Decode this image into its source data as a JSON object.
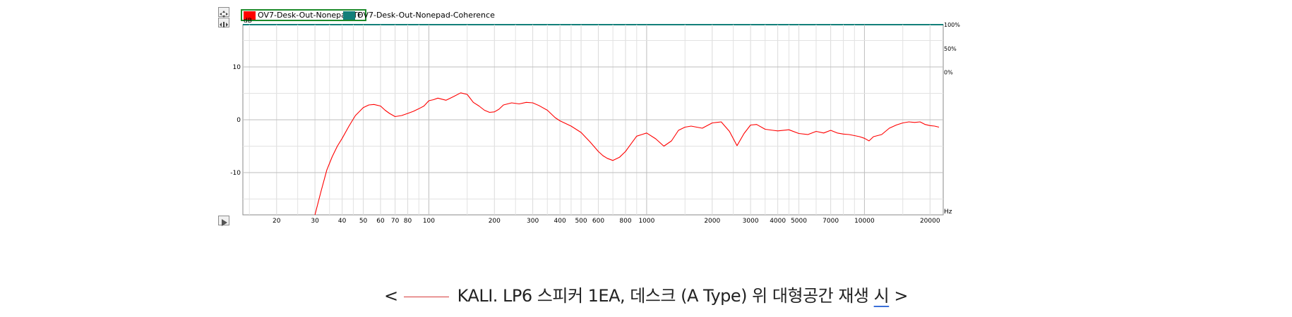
{
  "legend": [
    {
      "name": "OV7-Desk-Out-Nonepad-TF",
      "color": "#ff0000",
      "selected": true
    },
    {
      "name": "OV7-Desk-Out-Nonepad-Coherence",
      "color": "#127f7a",
      "selected": false
    }
  ],
  "caption": {
    "open": "<",
    "text": "KALI. LP6 스피커 1EA, 데스크 (A Type) 위 대형공간 재생",
    "last_word": "시",
    "close": ">"
  },
  "chart_data": {
    "type": "line",
    "xscale": "log",
    "xlim": [
      14,
      23000
    ],
    "ylim": [
      -18,
      18
    ],
    "ylabel": "dB",
    "xunit": "Hz",
    "grid": true,
    "y_ticks": [
      10,
      0,
      -10
    ],
    "y_tick_labels": [
      "10",
      "0",
      "-10"
    ],
    "right_ticks": [
      {
        "label": "100%",
        "y": 18
      },
      {
        "label": "50%",
        "y": 13.5
      },
      {
        "label": "0%",
        "y": 9
      }
    ],
    "x_ticks": [
      20,
      30,
      40,
      50,
      60,
      70,
      80,
      100,
      200,
      300,
      400,
      500,
      600,
      800,
      1000,
      2000,
      3000,
      4000,
      5000,
      7000,
      10000,
      20000
    ],
    "x_tick_labels": [
      "20",
      "30",
      "40",
      "50",
      "60",
      "70",
      "80",
      "100",
      "200",
      "300",
      "400",
      "500",
      "600",
      "800",
      "1000",
      "2000",
      "3000",
      "4000",
      "5000",
      "7000",
      "10000",
      "20000"
    ],
    "x_minor_grid": [
      15,
      25,
      35,
      45,
      90,
      150,
      250,
      350,
      450,
      700,
      900,
      1500,
      2500,
      3500,
      4500,
      6000,
      8000,
      9000,
      15000
    ],
    "series": [
      {
        "name": "OV7-Desk-Out-Nonepad-TF",
        "color": "#ff0000",
        "x": [
          30,
          32,
          34,
          36,
          38,
          40,
          43,
          46,
          50,
          53,
          56,
          60,
          63,
          66,
          70,
          75,
          80,
          85,
          90,
          95,
          100,
          105,
          110,
          120,
          130,
          140,
          150,
          160,
          170,
          180,
          190,
          200,
          210,
          220,
          240,
          260,
          280,
          300,
          320,
          350,
          380,
          400,
          450,
          500,
          550,
          600,
          630,
          660,
          700,
          750,
          800,
          850,
          900,
          950,
          1000,
          1100,
          1200,
          1300,
          1400,
          1500,
          1600,
          1800,
          2000,
          2200,
          2400,
          2600,
          2800,
          3000,
          3200,
          3500,
          3800,
          4000,
          4500,
          5000,
          5500,
          6000,
          6500,
          7000,
          7500,
          8000,
          8500,
          9000,
          9500,
          10000,
          10500,
          11000,
          12000,
          13000,
          14000,
          15000,
          16000,
          17000,
          18000,
          19000,
          20000,
          21000,
          22000
        ],
        "y": [
          -18,
          -13.5,
          -9.5,
          -7,
          -5,
          -3.5,
          -1.2,
          0.8,
          2.3,
          2.8,
          2.9,
          2.6,
          1.8,
          1.2,
          0.6,
          0.8,
          1.2,
          1.6,
          2.1,
          2.6,
          3.6,
          3.8,
          4.1,
          3.7,
          4.4,
          5.1,
          4.8,
          3.3,
          2.6,
          1.8,
          1.4,
          1.5,
          2.0,
          2.8,
          3.2,
          3.0,
          3.3,
          3.2,
          2.7,
          1.8,
          0.4,
          -0.2,
          -1.2,
          -2.4,
          -4.2,
          -6.0,
          -6.8,
          -7.3,
          -7.7,
          -7.1,
          -6.0,
          -4.5,
          -3.1,
          -2.8,
          -2.5,
          -3.6,
          -5.0,
          -4.0,
          -2.0,
          -1.4,
          -1.2,
          -1.6,
          -0.6,
          -0.4,
          -2.2,
          -4.9,
          -2.6,
          -1.0,
          -0.9,
          -1.8,
          -2.0,
          -2.1,
          -1.9,
          -2.6,
          -2.8,
          -2.2,
          -2.5,
          -2.0,
          -2.5,
          -2.7,
          -2.8,
          -3.0,
          -3.2,
          -3.5,
          -4.0,
          -3.2,
          -2.8,
          -1.6,
          -1.0,
          -0.6,
          -0.4,
          -0.5,
          -0.4,
          -0.9,
          -1.1,
          -1.2,
          -1.4
        ]
      }
    ]
  }
}
